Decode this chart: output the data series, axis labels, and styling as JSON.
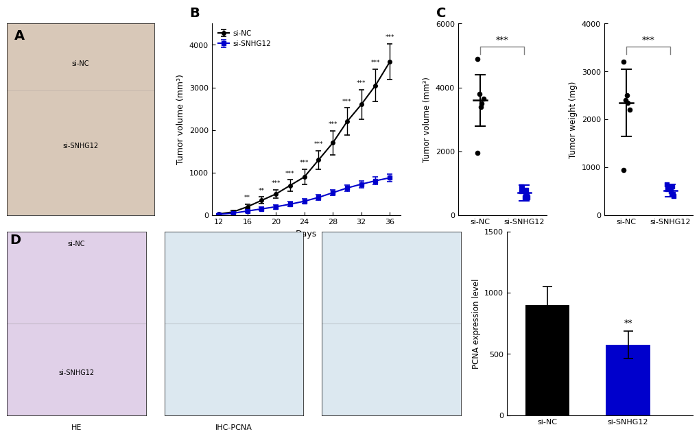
{
  "panel_B": {
    "days": [
      12,
      14,
      16,
      18,
      20,
      22,
      24,
      26,
      28,
      30,
      32,
      34,
      36
    ],
    "si_NC_mean": [
      30,
      80,
      200,
      350,
      500,
      700,
      900,
      1300,
      1700,
      2200,
      2600,
      3050,
      3600
    ],
    "si_NC_err": [
      10,
      30,
      60,
      80,
      100,
      130,
      180,
      220,
      280,
      320,
      350,
      380,
      420
    ],
    "si_SNHG12_mean": [
      20,
      50,
      100,
      150,
      200,
      260,
      330,
      420,
      530,
      640,
      730,
      810,
      880
    ],
    "si_SNHG12_err": [
      8,
      20,
      30,
      40,
      50,
      55,
      60,
      70,
      70,
      75,
      80,
      85,
      90
    ],
    "sig_labels": [
      "",
      "",
      "**",
      "**",
      "***",
      "***",
      "***",
      "***",
      "***",
      "***",
      "***",
      "***",
      "***"
    ],
    "ylabel": "Tumor volume (mm³)",
    "xlabel": "Days",
    "ylim": [
      0,
      4500
    ],
    "yticks": [
      0,
      1000,
      2000,
      3000,
      4000
    ],
    "xlim": [
      11,
      37.5
    ],
    "xticks": [
      12,
      16,
      20,
      24,
      28,
      32,
      36
    ],
    "legend_si_NC": "si-NC",
    "legend_si_SNHG12": "si-SNHG12"
  },
  "panel_C_vol": {
    "groups": [
      "si-NC",
      "si-SNHG12"
    ],
    "si_NC_points": [
      3800,
      3650,
      3500,
      3400,
      4900,
      1950
    ],
    "si_NC_mean": 3600,
    "si_NC_err": 800,
    "si_SNHG12_points": [
      750,
      650,
      550,
      800,
      900,
      550
    ],
    "si_SNHG12_mean": 700,
    "si_SNHG12_err": 250,
    "ylabel": "Tumor volume (mm³)",
    "ylim": [
      0,
      6000
    ],
    "yticks": [
      0,
      2000,
      4000,
      6000
    ],
    "sig_text": "***"
  },
  "panel_C_wt": {
    "groups": [
      "si-NC",
      "si-SNHG12"
    ],
    "si_NC_points": [
      2400,
      2200,
      2350,
      2500,
      3200,
      950
    ],
    "si_NC_mean": 2350,
    "si_NC_err": 700,
    "si_SNHG12_points": [
      550,
      450,
      500,
      600,
      650,
      400
    ],
    "si_SNHG12_mean": 520,
    "si_SNHG12_err": 130,
    "ylabel": "Tumor weight (mg)",
    "ylim": [
      0,
      4000
    ],
    "yticks": [
      0,
      1000,
      2000,
      3000,
      4000
    ],
    "sig_text": "***"
  },
  "panel_D_bar": {
    "categories": [
      "si-NC",
      "si-SNHG12"
    ],
    "values": [
      900,
      575
    ],
    "errors": [
      150,
      110
    ],
    "bar_colors": [
      "#000000",
      "#0000CC"
    ],
    "ylabel": "PCNA expression level",
    "ylim": [
      0,
      1500
    ],
    "yticks": [
      0,
      500,
      1000,
      1500
    ],
    "sig_text": "**"
  },
  "colors": {
    "si_NC_line": "#000000",
    "si_SNHG12_line": "#0000CC",
    "si_NC_dot": "#000000",
    "si_SNHG12_dot": "#0000CC",
    "background": "#ffffff"
  }
}
